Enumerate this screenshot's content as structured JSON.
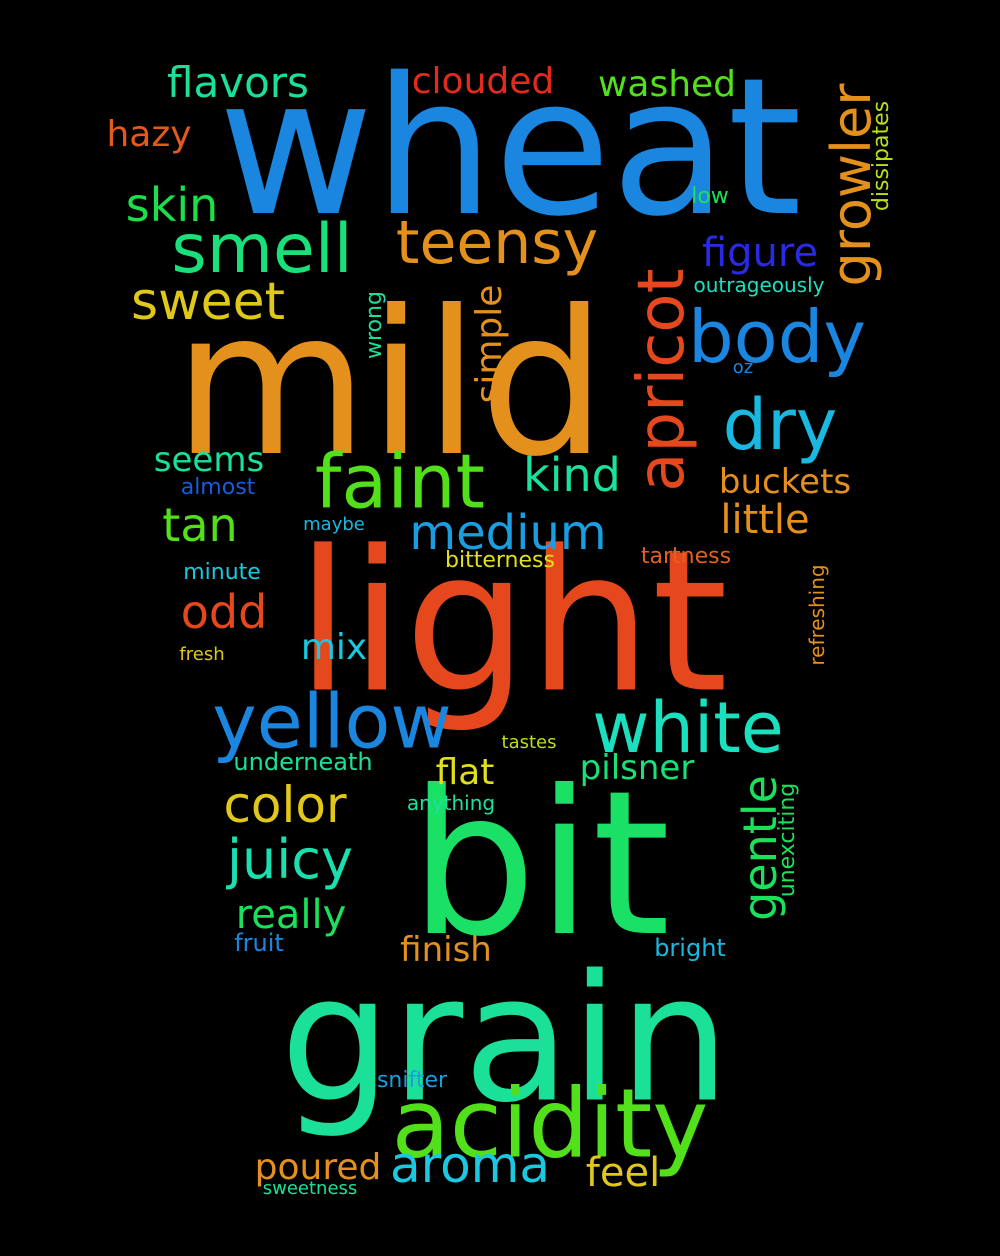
{
  "words": [
    {
      "text": "wheat",
      "color": "#1a86e0"
    },
    {
      "text": "mild",
      "color": "#e4901c"
    },
    {
      "text": "light",
      "color": "#e4481c"
    },
    {
      "text": "bit",
      "color": "#1ae066"
    },
    {
      "text": "grain",
      "color": "#1ae098"
    },
    {
      "text": "acidity",
      "color": "#52e01a"
    },
    {
      "text": "faint",
      "color": "#52e01a"
    },
    {
      "text": "yellow",
      "color": "#1a86e0"
    },
    {
      "text": "white",
      "color": "#1ae0c0"
    },
    {
      "text": "smell",
      "color": "#1ae07a"
    },
    {
      "text": "teensy",
      "color": "#e4901c"
    },
    {
      "text": "body",
      "color": "#1a86e0"
    },
    {
      "text": "dry",
      "color": "#1ab8e0"
    },
    {
      "text": "apricot",
      "color": "#e4481c"
    },
    {
      "text": "growler",
      "color": "#e4901c"
    },
    {
      "text": "sweet",
      "color": "#e0c81a"
    },
    {
      "text": "medium",
      "color": "#1a9ee0"
    },
    {
      "text": "kind",
      "color": "#1ae0a0"
    },
    {
      "text": "color",
      "color": "#e0c81a"
    },
    {
      "text": "juicy",
      "color": "#1ae0b0"
    },
    {
      "text": "aroma",
      "color": "#1ac8e0"
    },
    {
      "text": "gentle",
      "color": "#1ae05a"
    },
    {
      "text": "flavors",
      "color": "#1ae098"
    },
    {
      "text": "clouded",
      "color": "#e42a1c"
    },
    {
      "text": "washed",
      "color": "#52e01a"
    },
    {
      "text": "hazy",
      "color": "#e45a1c"
    },
    {
      "text": "skin",
      "color": "#1ae04a"
    },
    {
      "text": "figure",
      "color": "#2a2ae4"
    },
    {
      "text": "simple",
      "color": "#e4901c"
    },
    {
      "text": "tan",
      "color": "#52e01a"
    },
    {
      "text": "odd",
      "color": "#e4481c"
    },
    {
      "text": "little",
      "color": "#e4901c"
    },
    {
      "text": "buckets",
      "color": "#e4901c"
    },
    {
      "text": "seems",
      "color": "#1ae098"
    },
    {
      "text": "mix",
      "color": "#1ac8e0"
    },
    {
      "text": "pilsner",
      "color": "#1ae07a"
    },
    {
      "text": "really",
      "color": "#1ae05a"
    },
    {
      "text": "finish",
      "color": "#e4901c"
    },
    {
      "text": "flat",
      "color": "#e0e01a"
    },
    {
      "text": "feel",
      "color": "#e0c81a"
    },
    {
      "text": "poured",
      "color": "#e4901c"
    },
    {
      "text": "low",
      "color": "#1ae05a"
    },
    {
      "text": "outrageously",
      "color": "#1ae0c0"
    },
    {
      "text": "oz",
      "color": "#1a86e0"
    },
    {
      "text": "wrong",
      "color": "#1ae098"
    },
    {
      "text": "dissipates",
      "color": "#b8e01a"
    },
    {
      "text": "almost",
      "color": "#1a5ae0"
    },
    {
      "text": "maybe",
      "color": "#1ab8e0"
    },
    {
      "text": "bitterness",
      "color": "#e0e01a"
    },
    {
      "text": "tartness",
      "color": "#e4601c"
    },
    {
      "text": "minute",
      "color": "#1ac8e0"
    },
    {
      "text": "fresh",
      "color": "#e0c81a"
    },
    {
      "text": "refreshing",
      "color": "#e4901c"
    },
    {
      "text": "tastes",
      "color": "#b8e01a"
    },
    {
      "text": "underneath",
      "color": "#1ae098"
    },
    {
      "text": "anything",
      "color": "#1ae0a0"
    },
    {
      "text": "unexciting",
      "color": "#1ae05a"
    },
    {
      "text": "fruit",
      "color": "#1a86e0"
    },
    {
      "text": "bright",
      "color": "#1ab8e0"
    },
    {
      "text": "snifter",
      "color": "#1a9ee0"
    },
    {
      "text": "sweetness",
      "color": "#1ae098"
    }
  ]
}
